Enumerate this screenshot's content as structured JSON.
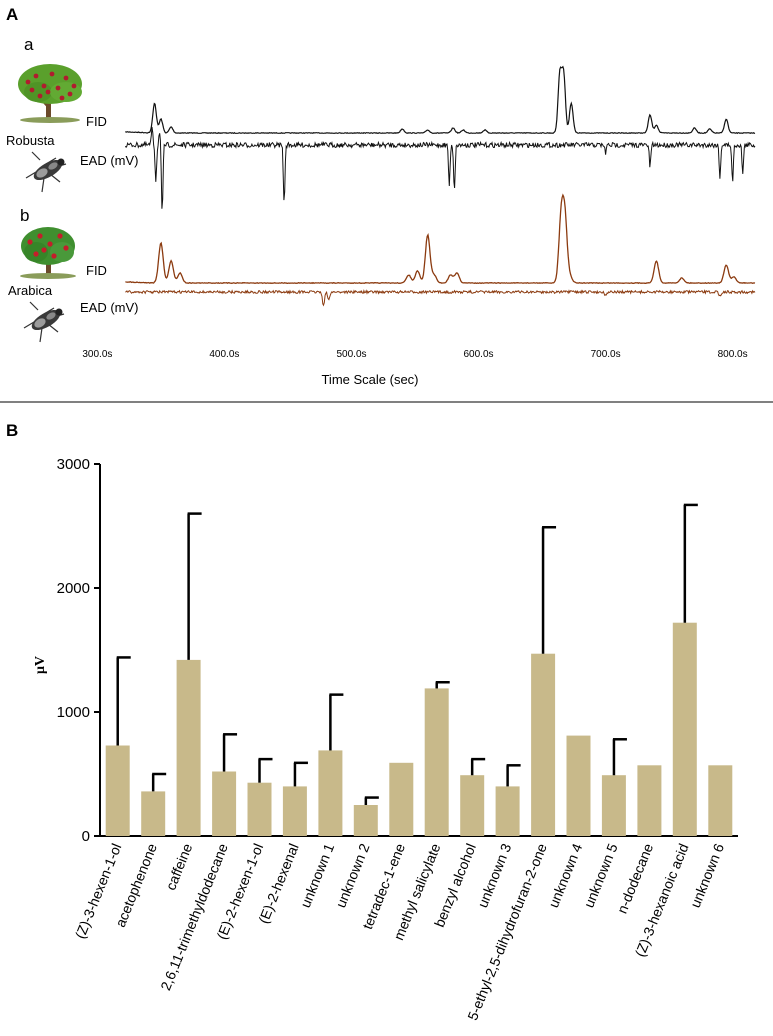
{
  "panels": {
    "a_letter": "A",
    "b_letter": "B",
    "sub_a": "a",
    "sub_b": "b"
  },
  "panel_a": {
    "robusta_label": "Robusta",
    "arabica_label": "Arabica",
    "fid_label": "FID",
    "ead_label": "EAD (mV)",
    "robusta_color": "#111111",
    "arabica_color": "#8b3a0f"
  },
  "chart_data": [
    {
      "type": "line",
      "title": "",
      "xlabel": "Time Scale (sec)",
      "ylabel": "",
      "xlim": [
        280,
        820
      ],
      "xticks": [
        {
          "value": 300,
          "label": "300.0s"
        },
        {
          "value": 400,
          "label": "400.0s"
        },
        {
          "value": 500,
          "label": "500.0s"
        },
        {
          "value": 600,
          "label": "600.0s"
        },
        {
          "value": 700,
          "label": "700.0s"
        },
        {
          "value": 800,
          "label": "800.0s"
        }
      ],
      "series": [
        {
          "name": "Robusta FID",
          "peaks": [
            [
              345,
              30
            ],
            [
              350,
              14
            ],
            [
              358,
              6
            ],
            [
              540,
              4
            ],
            [
              560,
              3
            ],
            [
              580,
              5
            ],
            [
              588,
              3
            ],
            [
              605,
              3
            ],
            [
              664,
              58
            ],
            [
              667,
              58
            ],
            [
              673,
              30
            ],
            [
              735,
              18
            ],
            [
              740,
              8
            ],
            [
              770,
              5
            ],
            [
              782,
              4
            ],
            [
              795,
              14
            ]
          ]
        },
        {
          "name": "Robusta EAD (mV)",
          "peaks": [
            [
              343,
              16
            ],
            [
              346,
              -35
            ],
            [
              349,
              14
            ],
            [
              351,
              -70
            ],
            [
              447,
              -60
            ],
            [
              577,
              -40
            ],
            [
              581,
              -45
            ],
            [
              700,
              -8
            ],
            [
              735,
              -22
            ],
            [
              790,
              -32
            ],
            [
              800,
              -38
            ],
            [
              808,
              -28
            ]
          ]
        },
        {
          "name": "Arabica FID",
          "peaks": [
            [
              350,
              40
            ],
            [
              358,
              22
            ],
            [
              365,
              10
            ],
            [
              545,
              8
            ],
            [
              552,
              12
            ],
            [
              560,
              48
            ],
            [
              565,
              8
            ],
            [
              578,
              8
            ],
            [
              583,
              10
            ],
            [
              665,
              62
            ],
            [
              668,
              62
            ],
            [
              672,
              6
            ],
            [
              740,
              22
            ],
            [
              760,
              5
            ],
            [
              795,
              18
            ],
            [
              801,
              6
            ]
          ]
        },
        {
          "name": "Arabica EAD (mV)",
          "peaks": [
            [
              478,
              -14
            ],
            [
              482,
              -8
            ],
            [
              700,
              -3
            ],
            [
              790,
              -4
            ]
          ]
        }
      ]
    },
    {
      "type": "bar",
      "title": "",
      "xlabel": "",
      "ylabel": "μV",
      "ylim": [
        0,
        3000
      ],
      "yticks": [
        0,
        1000,
        2000,
        3000
      ],
      "categories": [
        "(Z)-3-hexen-1-ol",
        "acetophenone",
        "caffeine",
        "2,6,11-trimethyldodecane",
        "(E)-2-hexen-1-ol",
        "(E)-2-hexenal",
        "unknown 1",
        "unknown 2",
        "tetradec-1-ene",
        "methyl salicylate",
        "benzyl alcohol",
        "unknown 3",
        "5-ethyl-2,5-dihydrofuran-2-one",
        "unknown 4",
        "unknown 5",
        "n-dodecane",
        "(Z)-3-hexanoic acid",
        "unknown 6"
      ],
      "values": [
        730,
        360,
        1420,
        520,
        430,
        400,
        690,
        250,
        590,
        1190,
        490,
        400,
        1470,
        810,
        490,
        570,
        1720,
        570
      ],
      "error_upper": [
        1440,
        500,
        2600,
        820,
        620,
        590,
        1140,
        310,
        null,
        1240,
        620,
        570,
        2490,
        null,
        780,
        null,
        2670,
        null
      ],
      "bar_color": "#c8b98a"
    }
  ]
}
